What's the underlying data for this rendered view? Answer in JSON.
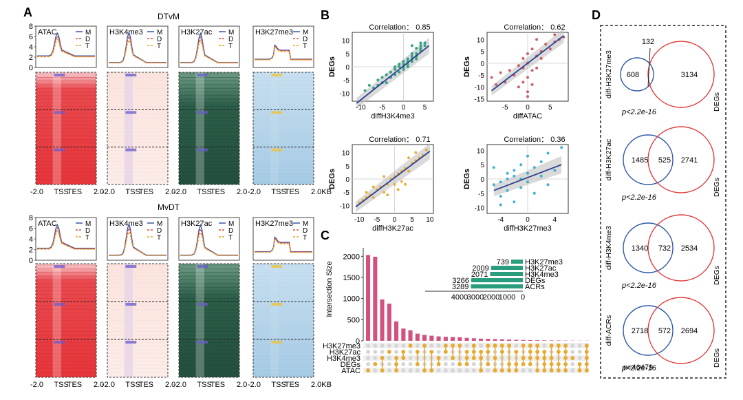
{
  "panel_a": {
    "letter": "A",
    "top_title": "DTvM",
    "bottom_title": "MvDT",
    "marks": [
      "ATAC",
      "H3K4me3",
      "H3K27ac",
      "H3K27me3"
    ],
    "legend": [
      "M",
      "D",
      "T"
    ],
    "y_ticks": [
      "8",
      "6",
      "4",
      "2",
      "0"
    ],
    "x_axis": {
      "left": "-2.0",
      "tss": "TSS",
      "tes": "TES",
      "right": "2.0",
      "right_last": "2.0KB"
    },
    "colors": {
      "M": "#3a57a8",
      "D": "#e04a3a",
      "T": "#e8a020",
      "atac_heat": "#e5353a",
      "k4_heat": "#fbe7e2",
      "k27ac_heat": "#275844",
      "k27me3_heat": "#a9cce4"
    }
  },
  "panel_b": {
    "letter": "B",
    "plots": [
      {
        "corr_label": "Correlation： 0.85",
        "xlabel": "diffH3K4me3",
        "ylabel": "DEGs",
        "xticks": [
          "-10",
          "-5",
          "0",
          "5"
        ],
        "yticks": [
          "10",
          "5",
          "0",
          "-5",
          "-10"
        ],
        "color": "#1f9a7a"
      },
      {
        "corr_label": "Correlation： 0.62",
        "xlabel": "diffATAC",
        "ylabel": "DEGs",
        "xticks": [
          "-5",
          "0",
          "5"
        ],
        "yticks": [
          "10",
          "5",
          "0",
          "-5",
          "-10",
          "-15"
        ],
        "color": "#c8505a"
      },
      {
        "corr_label": "Correlation： 0.71",
        "xlabel": "diffH3K27ac",
        "ylabel": "DEGs",
        "xticks": [
          "-10",
          "-5",
          "0",
          "5",
          "10"
        ],
        "yticks": [
          "10",
          "5",
          "0",
          "-5",
          "-10"
        ],
        "color": "#e6a92a"
      },
      {
        "corr_label": "Correlation： 0.36",
        "xlabel": "diffH3K27me3",
        "ylabel": "DEGs",
        "xticks": [
          "-4",
          "0",
          "4"
        ],
        "yticks": [
          "10",
          "5",
          "0",
          "-5",
          "-10"
        ],
        "color": "#2ba8cf"
      }
    ]
  },
  "panel_c": {
    "letter": "C",
    "ylabel": "Intersection Size",
    "yticks": [
      "2000",
      "1500",
      "1000",
      "500",
      "0"
    ],
    "rows": [
      "H3K27me3",
      "H3K27ac",
      "H3K4me3",
      "DEGs",
      "ATAC"
    ],
    "set_sizes": [
      {
        "label": "H3K27me3",
        "value": 739,
        "value_label": "739"
      },
      {
        "label": "H3K27ac",
        "value": 2009,
        "value_label": "2009"
      },
      {
        "label": "H3K4me3",
        "value": 2071,
        "value_label": "2071"
      },
      {
        "label": "DEGs",
        "value": 3266,
        "value_label": "3266"
      },
      {
        "label": "ACRs",
        "value": 3289,
        "value_label": "3289"
      }
    ],
    "set_size_ticks": [
      "4000",
      "3000",
      "2000",
      "1000",
      "0"
    ],
    "bar_color": "#d2527f",
    "set_color": "#2a9d7f",
    "dot_color": "#e6ab35"
  },
  "panel_d": {
    "letter": "D",
    "venns": [
      {
        "set_label": "diff-H3K27me3",
        "left": "608",
        "overlap": "132",
        "right": "3134",
        "p": "p<2.2e-16",
        "other": "DEGs"
      },
      {
        "set_label": "diff-H3K27ac",
        "left": "1485",
        "overlap": "525",
        "right": "2741",
        "p": "p<2.2e-16",
        "other": "DEGs"
      },
      {
        "set_label": "diff-H3K4me3",
        "left": "1340",
        "overlap": "732",
        "right": "2534",
        "p": "p<2.2e-16",
        "other": "DEGs"
      },
      {
        "set_label": "diff-ACRs",
        "left": "2718",
        "overlap": "572",
        "right": "2694",
        "p": "p<2.2e-16",
        "other": "DEGs"
      }
    ],
    "n_label": "n=46479",
    "colors": {
      "blue": "#2f5aa8",
      "red": "#e23b3b"
    }
  },
  "chart_data": [
    {
      "type": "scatter",
      "title": "Correlation： 0.85",
      "xlabel": "diffH3K4me3",
      "ylabel": "DEGs",
      "xlim": [
        -12,
        7
      ],
      "ylim": [
        -13,
        13
      ],
      "fit": {
        "slope": 1.28,
        "intercept": 0.3
      },
      "points": [
        [
          -9,
          -9
        ],
        [
          -8,
          -7
        ],
        [
          -7,
          -8
        ],
        [
          -6,
          -5
        ],
        [
          -5,
          -4
        ],
        [
          -4,
          -6
        ],
        [
          -4,
          -3
        ],
        [
          -3,
          -2
        ],
        [
          -3,
          -4
        ],
        [
          -2,
          -1
        ],
        [
          -2,
          -3
        ],
        [
          -1,
          0
        ],
        [
          -1,
          -2
        ],
        [
          0,
          1
        ],
        [
          0,
          -1
        ],
        [
          0,
          0
        ],
        [
          1,
          2
        ],
        [
          1,
          1
        ],
        [
          1,
          3
        ],
        [
          2,
          3
        ],
        [
          2,
          4
        ],
        [
          2,
          2
        ],
        [
          3,
          5
        ],
        [
          3,
          4
        ],
        [
          4,
          6
        ],
        [
          4,
          8
        ],
        [
          4,
          7
        ],
        [
          5,
          9
        ],
        [
          5,
          8
        ],
        [
          -6,
          -7
        ],
        [
          -1,
          1
        ],
        [
          1,
          0
        ],
        [
          2,
          5
        ],
        [
          3,
          7
        ],
        [
          -5,
          -6
        ],
        [
          0,
          2
        ],
        [
          -2,
          0
        ],
        [
          3,
          3
        ],
        [
          4,
          9
        ],
        [
          2,
          8
        ]
      ]
    },
    {
      "type": "scatter",
      "title": "Correlation： 0.62",
      "xlabel": "diffATAC",
      "ylabel": "DEGs",
      "xlim": [
        -9,
        9
      ],
      "ylim": [
        -16,
        13
      ],
      "fit": {
        "slope": 1.45,
        "intercept": 0.0
      },
      "points": [
        [
          -8,
          -6
        ],
        [
          -7,
          -9
        ],
        [
          -6,
          -4
        ],
        [
          -5,
          -8
        ],
        [
          -4,
          -3
        ],
        [
          -3,
          -5
        ],
        [
          -2,
          -10
        ],
        [
          -1,
          -2
        ],
        [
          -1,
          -8
        ],
        [
          0,
          -12
        ],
        [
          0,
          -14
        ],
        [
          0,
          4
        ],
        [
          1,
          6
        ],
        [
          1,
          -3
        ],
        [
          2,
          3
        ],
        [
          2,
          10
        ],
        [
          3,
          5
        ],
        [
          4,
          8
        ],
        [
          5,
          6
        ],
        [
          6,
          9
        ],
        [
          7,
          10
        ],
        [
          8,
          11
        ],
        [
          0,
          -6
        ],
        [
          -1,
          2
        ],
        [
          1,
          -9
        ],
        [
          0,
          0
        ],
        [
          -2,
          -1
        ],
        [
          2,
          -2
        ],
        [
          3,
          2
        ],
        [
          6,
          12
        ]
      ]
    },
    {
      "type": "scatter",
      "title": "Correlation： 0.71",
      "xlabel": "diffH3K27ac",
      "ylabel": "DEGs",
      "xlim": [
        -12,
        11
      ],
      "ylim": [
        -13,
        13
      ],
      "fit": {
        "slope": 1.0,
        "intercept": 0.5
      },
      "points": [
        [
          -10,
          -9
        ],
        [
          -9,
          -8
        ],
        [
          -8,
          -7
        ],
        [
          -7,
          -6
        ],
        [
          -6,
          -7
        ],
        [
          -5,
          -4
        ],
        [
          -4,
          -3
        ],
        [
          -3,
          -5
        ],
        [
          -2,
          -2
        ],
        [
          -1,
          0
        ],
        [
          0,
          1
        ],
        [
          0,
          -2
        ],
        [
          1,
          2
        ],
        [
          2,
          3
        ],
        [
          3,
          4
        ],
        [
          4,
          3
        ],
        [
          5,
          6
        ],
        [
          6,
          7
        ],
        [
          7,
          8
        ],
        [
          8,
          9
        ],
        [
          9,
          11
        ],
        [
          -6,
          -3
        ],
        [
          -2,
          -6
        ],
        [
          2,
          -1
        ],
        [
          4,
          8
        ],
        [
          -3,
          1
        ],
        [
          1,
          -4
        ],
        [
          3,
          -2
        ],
        [
          6,
          10
        ],
        [
          -8,
          -5
        ]
      ]
    },
    {
      "type": "scatter",
      "title": "Correlation： 0.36",
      "xlabel": "diffH3K27me3",
      "ylabel": "DEGs",
      "xlim": [
        -6,
        6
      ],
      "ylim": [
        -12,
        12
      ],
      "fit": {
        "slope": 0.9,
        "intercept": 0.5
      },
      "points": [
        [
          -5,
          -2
        ],
        [
          -4,
          -1
        ],
        [
          -4,
          -6
        ],
        [
          -3,
          0
        ],
        [
          -3,
          2
        ],
        [
          -3,
          -4
        ],
        [
          -2,
          1
        ],
        [
          -2,
          -8
        ],
        [
          -2,
          3
        ],
        [
          -1,
          0
        ],
        [
          -1,
          -3
        ],
        [
          -1,
          5
        ],
        [
          0,
          2
        ],
        [
          0,
          -1
        ],
        [
          0,
          8
        ],
        [
          1,
          4
        ],
        [
          1,
          -5
        ],
        [
          2,
          1
        ],
        [
          2,
          6
        ],
        [
          3,
          -2
        ],
        [
          3,
          9
        ],
        [
          4,
          3
        ],
        [
          5,
          11
        ],
        [
          -5,
          4
        ],
        [
          -4,
          -9
        ]
      ]
    },
    {
      "type": "bar",
      "title": "Intersection Size",
      "ylabel": "Intersection Size",
      "ylim": [
        0,
        2200
      ],
      "values": [
        2030,
        1990,
        980,
        880,
        460,
        290,
        250,
        170,
        140,
        120,
        105,
        95,
        90,
        85,
        70,
        60,
        50,
        45,
        40,
        35,
        30,
        25,
        20,
        18,
        15,
        12,
        10,
        8,
        6,
        5,
        4,
        3
      ]
    },
    {
      "type": "bar",
      "title": "Set sizes",
      "categories": [
        "H3K27me3",
        "H3K27ac",
        "H3K4me3",
        "DEGs",
        "ACRs"
      ],
      "values": [
        739,
        2009,
        2071,
        3266,
        3289
      ],
      "xlim": [
        4000,
        0
      ]
    }
  ]
}
